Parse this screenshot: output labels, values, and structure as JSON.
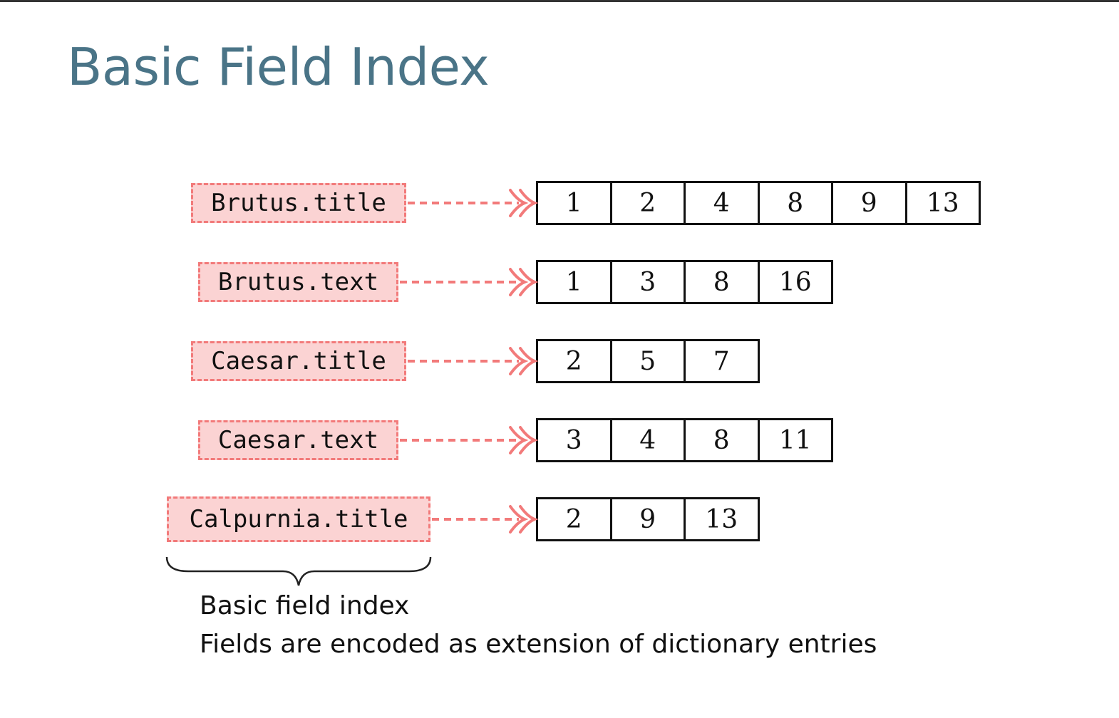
{
  "slide": {
    "title": "Basic Field Index"
  },
  "rows": [
    {
      "term": "Brutus.title",
      "postings": [
        "1",
        "2",
        "4",
        "8",
        "9",
        "13"
      ]
    },
    {
      "term": "Brutus.text",
      "postings": [
        "1",
        "3",
        "8",
        "16"
      ]
    },
    {
      "term": "Caesar.title",
      "postings": [
        "2",
        "5",
        "7"
      ]
    },
    {
      "term": "Caesar.text",
      "postings": [
        "3",
        "4",
        "8",
        "11"
      ]
    },
    {
      "term": "Calpurnia.title",
      "postings": [
        "2",
        "9",
        "13"
      ]
    }
  ],
  "captions": {
    "line1": "Basic field index",
    "line2": "Fields are encoded as extension of dictionary entries"
  },
  "colors": {
    "title": "#4a7487",
    "term_fill": "#fbd3d3",
    "term_border": "#f27a7a",
    "arrow": "#f27a7a"
  }
}
